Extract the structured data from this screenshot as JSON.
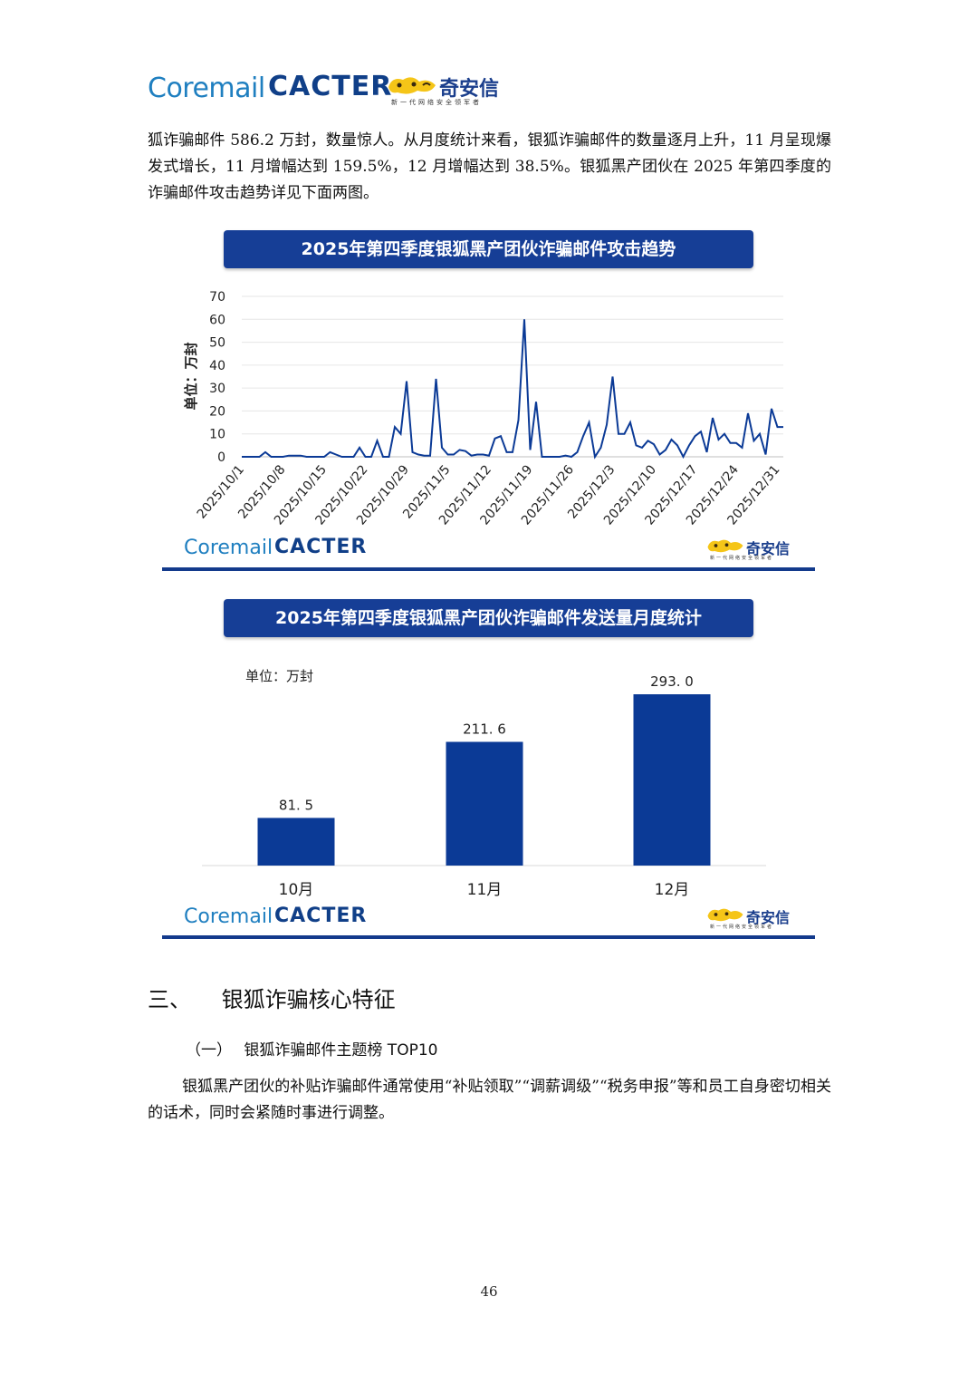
{
  "header": {
    "coremail": "Coremail",
    "cacter": "CACTER",
    "qax_name": "奇安信",
    "qax_tagline": "新一代网络安全领军者"
  },
  "intro_text": "狐诈骗邮件 586.2 万封，数量惊人。从月度统计来看，银狐诈骗邮件的数量逐月上升，11 月呈现爆发式增长，11 月增幅达到 159.5%，12 月增幅达到 38.5%。银狐黑产团伙在 2025 年第四季度的诈骗邮件攻击趋势详见下面两图。",
  "chart1": {
    "title": "2025年第四季度银狐黑产团伙诈骗邮件攻击趋势",
    "ylabel": "单位：万封",
    "logo_coremail": "Coremail",
    "logo_cacter": "CACTER",
    "logo_qax": "奇安信",
    "logo_qax_tagline": "新一代网络安全领军者"
  },
  "chart2": {
    "title": "2025年第四季度银狐黑产团伙诈骗邮件发送量月度统计",
    "unit": "单位：万封",
    "logo_coremail": "Coremail",
    "logo_cacter": "CACTER",
    "logo_qax": "奇安信",
    "logo_qax_tagline": "新一代网络安全领军者"
  },
  "chart_data": [
    {
      "type": "line",
      "title": "2025年第四季度银狐黑产团伙诈骗邮件攻击趋势",
      "ylabel": "单位：万封",
      "xlabel": "",
      "ylim": [
        0,
        70
      ],
      "yticks": [
        0,
        10,
        20,
        30,
        40,
        50,
        60,
        70
      ],
      "grid": true,
      "x_tick_labels": [
        "2025/10/1",
        "2025/10/8",
        "2025/10/15",
        "2025/10/22",
        "2025/10/29",
        "2025/11/5",
        "2025/11/12",
        "2025/11/19",
        "2025/11/26",
        "2025/12/3",
        "2025/12/10",
        "2025/12/17",
        "2025/12/24",
        "2025/12/31"
      ],
      "x_start": "2025/10/1",
      "x_end": "2025/12/31",
      "color": "#0b3a96",
      "values": [
        0,
        0,
        0,
        0,
        2,
        0,
        0,
        0,
        0.5,
        0.5,
        0.5,
        0,
        0,
        0,
        0,
        2,
        1,
        0,
        0,
        0,
        4,
        0,
        0,
        7,
        0,
        0,
        13,
        10,
        33,
        2,
        1,
        0.5,
        0.5,
        34,
        4,
        1,
        1,
        3,
        2.5,
        0.5,
        1,
        1,
        0.5,
        8,
        9,
        2,
        2,
        16,
        60,
        3,
        24,
        0,
        0,
        0,
        0,
        0.5,
        0,
        2,
        9,
        15,
        0,
        4,
        14,
        35,
        10,
        10,
        15,
        5,
        4,
        7,
        5.5,
        1,
        3,
        7.5,
        5,
        0,
        5,
        9,
        11,
        2,
        17,
        7.5,
        10,
        6,
        6,
        4,
        19,
        7,
        10,
        1,
        21,
        13,
        13
      ]
    },
    {
      "type": "bar",
      "title": "2025年第四季度银狐黑产团伙诈骗邮件发送量月度统计",
      "ylabel": "单位：万封",
      "categories": [
        "10月",
        "11月",
        "12月"
      ],
      "values": [
        81.5,
        211.6,
        293.0
      ],
      "value_labels": [
        "81. 5",
        "211. 6",
        "293. 0"
      ],
      "color": "#0b3a96"
    }
  ],
  "section3": {
    "number": "三、",
    "title": "银狐诈骗核心特征"
  },
  "subsection1": {
    "number": "（一）",
    "title": "银狐诈骗邮件主题榜 TOP10"
  },
  "body_text": "银狐黑产团伙的补贴诈骗邮件通常使用“补贴领取”“调薪调级”“税务申报”等和员工自身密切相关的话术，同时会紧随时事进行调整。",
  "page_number": "46"
}
